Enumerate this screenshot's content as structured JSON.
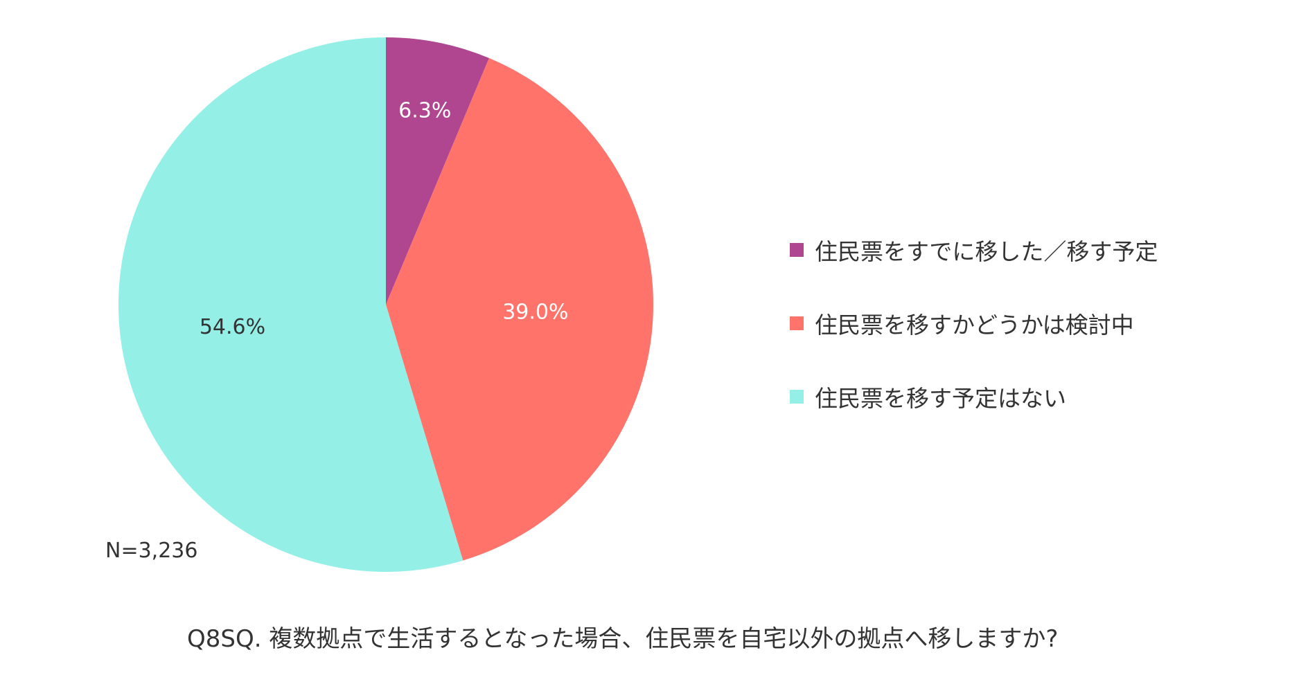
{
  "chart_data": {
    "type": "pie",
    "categories": [
      "住民票をすでに移した／移す予定",
      "住民票を移すかどうかは検討中",
      "住民票を移す予定はない"
    ],
    "values": [
      6.3,
      39.0,
      54.6
    ],
    "value_labels": [
      "6.3%",
      "39.0%",
      "54.6%"
    ],
    "colors": [
      "#b0468f",
      "#ff736b",
      "#94f0e6"
    ],
    "label_colors": [
      "#ffffff",
      "#ffffff",
      "#333333"
    ],
    "legend_placement": "right",
    "start_angle_deg": 0,
    "direction": "clockwise"
  },
  "sample_size": "N=3,236",
  "question": "Q8SQ. 複数拠点で生活するとなった場合、住民票を自宅以外の拠点へ移しますか?"
}
